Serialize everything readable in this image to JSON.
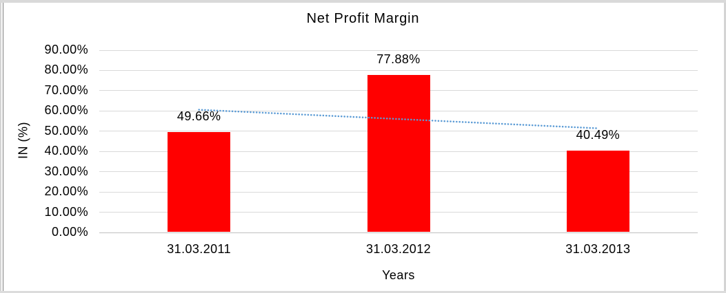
{
  "window": {
    "background": "#ffffff",
    "frame_color": "#d9d9d9",
    "left_line_color": "#7d7d7d"
  },
  "chart_data": {
    "type": "bar",
    "title": "Net Profit Margin",
    "xlabel": "Years",
    "ylabel": "IN (%)",
    "categories": [
      "31.03.2011",
      "31.03.2012",
      "31.03.2013"
    ],
    "values": [
      49.66,
      77.88,
      40.49
    ],
    "value_labels": [
      "49.66%",
      "77.88%",
      "40.49%"
    ],
    "bar_color": "#ff0000",
    "ylim": [
      0,
      90
    ],
    "y_tick_step": 10,
    "y_ticks": [
      "0.00%",
      "10.00%",
      "20.00%",
      "30.00%",
      "40.00%",
      "50.00%",
      "60.00%",
      "70.00%",
      "80.00%",
      "90.00%"
    ],
    "grid": true,
    "gridline_color": "#d9d9d9",
    "axis_line_color": "#bfbfbf",
    "legend_position": "none",
    "trendline": {
      "type": "linear",
      "style": "dotted",
      "color": "#5b9bd5",
      "fitted_values": [
        60.6,
        56.01,
        51.43
      ]
    }
  }
}
